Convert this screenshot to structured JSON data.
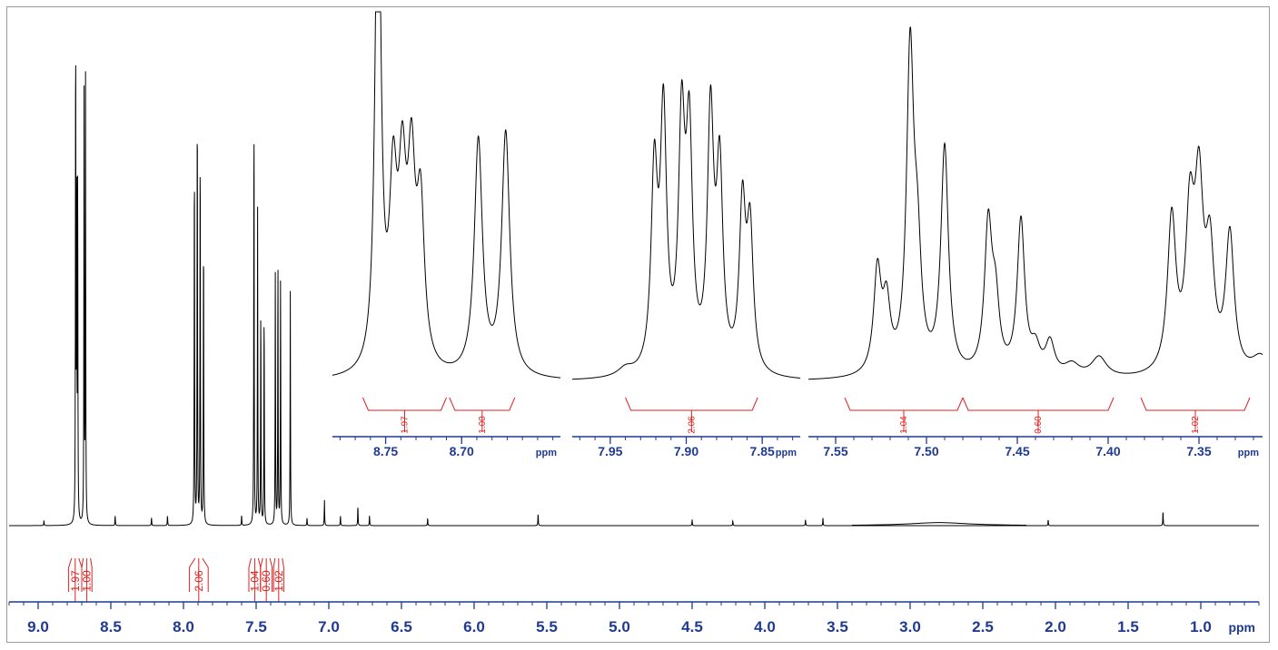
{
  "chart_data": [
    {
      "type": "line",
      "name": "main-spectrum",
      "xlabel": "ppm",
      "xlim": [
        9.2,
        0.6
      ],
      "x_reversed": true,
      "xticks": [
        "9.0",
        "8.5",
        "8.0",
        "7.5",
        "7.0",
        "6.5",
        "6.0",
        "5.5",
        "5.0",
        "4.5",
        "4.0",
        "3.5",
        "3.0",
        "2.5",
        "2.0",
        "1.5",
        "1.0"
      ],
      "x_unit_label": "ppm",
      "peaks": [
        {
          "ppm": 8.742,
          "height": 1.0
        },
        {
          "ppm": 8.735,
          "height": 0.68
        },
        {
          "ppm": 8.728,
          "height": 0.68
        },
        {
          "ppm": 8.684,
          "height": 0.84
        },
        {
          "ppm": 8.674,
          "height": 0.87
        },
        {
          "ppm": 8.96,
          "height": 0.01
        },
        {
          "ppm": 8.47,
          "height": 0.02
        },
        {
          "ppm": 8.22,
          "height": 0.016
        },
        {
          "ppm": 8.11,
          "height": 0.02
        },
        {
          "ppm": 7.925,
          "height": 0.76
        },
        {
          "ppm": 7.905,
          "height": 0.88
        },
        {
          "ppm": 7.885,
          "height": 0.78
        },
        {
          "ppm": 7.862,
          "height": 0.6
        },
        {
          "ppm": 7.6,
          "height": 0.02
        },
        {
          "ppm": 7.515,
          "height": 0.85
        },
        {
          "ppm": 7.49,
          "height": 0.62
        },
        {
          "ppm": 7.468,
          "height": 0.44
        },
        {
          "ppm": 7.445,
          "height": 0.44
        },
        {
          "ppm": 7.368,
          "height": 0.5
        },
        {
          "ppm": 7.35,
          "height": 0.53
        },
        {
          "ppm": 7.332,
          "height": 0.5
        },
        {
          "ppm": 7.265,
          "height": 0.46
        },
        {
          "ppm": 7.15,
          "height": 0.015
        },
        {
          "ppm": 7.03,
          "height": 0.05
        },
        {
          "ppm": 6.92,
          "height": 0.02
        },
        {
          "ppm": 6.8,
          "height": 0.04
        },
        {
          "ppm": 6.72,
          "height": 0.02
        },
        {
          "ppm": 6.32,
          "height": 0.015
        },
        {
          "ppm": 5.56,
          "height": 0.025
        },
        {
          "ppm": 4.5,
          "height": 0.012
        },
        {
          "ppm": 4.22,
          "height": 0.01
        },
        {
          "ppm": 3.72,
          "height": 0.012
        },
        {
          "ppm": 3.6,
          "height": 0.015
        },
        {
          "ppm": 2.05,
          "height": 0.012
        },
        {
          "ppm": 1.26,
          "height": 0.03
        }
      ],
      "integrals": [
        {
          "from": 8.79,
          "to": 8.7,
          "value": "1.97"
        },
        {
          "from": 8.7,
          "to": 8.63,
          "value": "1.00"
        },
        {
          "from": 7.96,
          "to": 7.83,
          "value": "2.06"
        },
        {
          "from": 7.55,
          "to": 7.47,
          "value": "1.04"
        },
        {
          "from": 7.47,
          "to": 7.39,
          "value": "0.60"
        },
        {
          "from": 7.38,
          "to": 7.31,
          "value": "1.02"
        }
      ]
    },
    {
      "type": "line",
      "name": "inset-8.7",
      "xlim": [
        8.785,
        8.635
      ],
      "xticks": [
        "8.75",
        "8.70"
      ],
      "x_unit_label": "ppm",
      "integrals": [
        {
          "from": 8.765,
          "to": 8.71,
          "value": "1.97"
        },
        {
          "from": 8.708,
          "to": 8.665,
          "value": "1.00"
        }
      ]
    },
    {
      "type": "line",
      "name": "inset-7.9",
      "xlim": [
        7.975,
        7.825
      ],
      "xticks": [
        "7.95",
        "7.90",
        "7.85"
      ],
      "x_unit_label": "ppm",
      "integrals": [
        {
          "from": 7.94,
          "to": 7.853,
          "value": "2.06"
        }
      ]
    },
    {
      "type": "line",
      "name": "inset-7.4",
      "xlim": [
        7.565,
        7.315
      ],
      "xticks": [
        "7.55",
        "7.50",
        "7.45",
        "7.40",
        "7.35"
      ],
      "x_unit_label": "ppm",
      "integrals": [
        {
          "from": 7.545,
          "to": 7.48,
          "value": "1.04"
        },
        {
          "from": 7.48,
          "to": 7.397,
          "value": "0.60"
        },
        {
          "from": 7.382,
          "to": 7.322,
          "value": "1.02"
        }
      ]
    }
  ],
  "colors": {
    "trace": "#000000",
    "axis": "#1f3a93",
    "integral": "#e02020",
    "frame": "#9a9a9a"
  }
}
